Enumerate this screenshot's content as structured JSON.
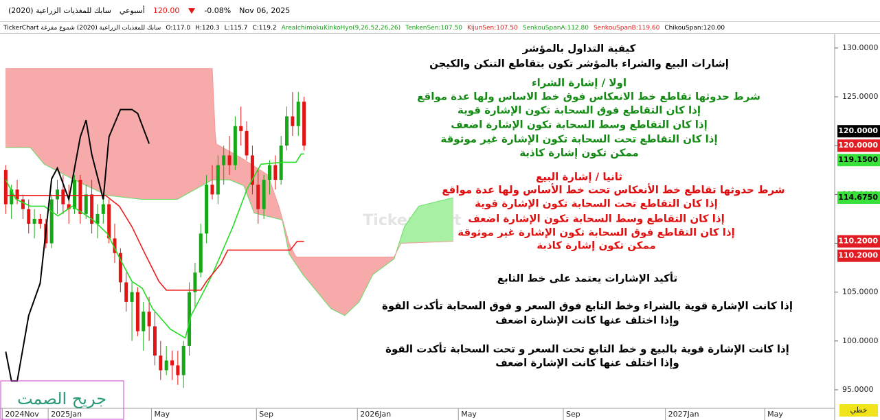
{
  "header": {
    "symbol": "سابك للمغذيات الزراعية (2020)",
    "interval": "أسبوعي",
    "price": "120.00",
    "change": "-0.08%",
    "date": "Nov 06, 2025"
  },
  "legend_bar": {
    "source": "TickerChart سابك للمغذيات الزراعية (2020) شموع مفرغة",
    "ohlc": [
      "O:117.0",
      "H:120.3",
      "L:115.7",
      "C:119.2"
    ],
    "indicators": [
      {
        "text": "AreaIchimokuKinkoHyo(9,26,52,26,26)",
        "color": "#1aa01a"
      },
      {
        "text": "TenkenSen:107.50",
        "color": "#1aa01a"
      },
      {
        "text": "KijunSen:107.50",
        "color": "#e01a1a"
      },
      {
        "text": "SenkouSpanA:112.80",
        "color": "#1aa01a"
      },
      {
        "text": "SenkouSpanB:119.60",
        "color": "#e01a1a"
      },
      {
        "text": "ChikouSpan:120.00",
        "color": "#000000"
      }
    ]
  },
  "chart_data": {
    "type": "candlestick",
    "xlim": [
      -1,
      144.5
    ],
    "ylim": [
      93.1,
      131.4
    ],
    "yticks": [
      {
        "value": 95,
        "label": "95.0000"
      },
      {
        "value": 100,
        "label": "100.0000"
      },
      {
        "value": 105,
        "label": "105.0000"
      },
      {
        "value": 110,
        "label": "110.0000"
      },
      {
        "value": 115,
        "label": "115.0000"
      },
      {
        "value": 120,
        "label": "120.0000"
      },
      {
        "value": 125,
        "label": "125.0000"
      },
      {
        "value": 130,
        "label": "130.0000"
      }
    ],
    "xticks": [
      {
        "value": -0.6,
        "label": "2024Nov"
      },
      {
        "value": 7.4,
        "label": "2025Jan"
      },
      {
        "value": 25.4,
        "label": "May"
      },
      {
        "value": 43.7,
        "label": "Sep"
      },
      {
        "value": 61.3,
        "label": "2026Jan"
      },
      {
        "value": 78.9,
        "label": "May"
      },
      {
        "value": 97.2,
        "label": "Sep"
      },
      {
        "value": 115,
        "label": "2027Jan"
      },
      {
        "value": 132.3,
        "label": "May"
      }
    ],
    "up_color": "#17a817",
    "down_color": "#e31414",
    "candles": {
      "open": [
        117.5,
        114,
        115.5,
        114.5,
        113.5,
        112,
        112.5,
        112,
        110,
        114.5,
        115.5,
        114,
        113.5,
        116.5,
        113,
        115,
        112,
        113,
        114,
        110.5,
        109,
        106,
        104,
        105,
        101,
        103,
        101.5,
        98.5,
        97,
        98,
        97.5,
        96.5,
        99.5,
        105,
        107,
        111,
        116,
        115,
        118,
        119,
        118,
        122,
        121.5,
        119,
        116,
        113.5,
        116.5,
        118,
        116.5,
        120,
        123,
        122,
        124.5
      ],
      "high": [
        118,
        116,
        116.5,
        115,
        114.5,
        113.5,
        113,
        112.5,
        115,
        116.5,
        117,
        116,
        117,
        117,
        116,
        116.5,
        114,
        115,
        114.5,
        112,
        109.5,
        107,
        106,
        105.5,
        104,
        104.5,
        103,
        100,
        99.5,
        99,
        99,
        100,
        106,
        108,
        112,
        117,
        118,
        119,
        120,
        121,
        123,
        124,
        122.5,
        120,
        117.5,
        117,
        118.5,
        119,
        121,
        124,
        125.5,
        125.5,
        125
      ],
      "low": [
        113,
        112.5,
        114,
        112.5,
        111,
        110.5,
        111.5,
        109.5,
        109.5,
        113,
        113,
        112,
        113,
        112,
        112.5,
        111,
        110.5,
        112,
        110,
        108,
        105,
        103,
        100,
        100.5,
        99,
        100,
        97.5,
        96,
        96.5,
        96,
        95.5,
        95.2,
        98.5,
        103.5,
        106.5,
        110,
        114.5,
        114,
        116,
        117,
        117.5,
        120,
        118.5,
        115,
        112,
        112.5,
        115,
        115.5,
        116,
        119.5,
        121,
        121,
        119.5
      ],
      "close": [
        114,
        115.5,
        114.5,
        113.5,
        112,
        112.5,
        112,
        110,
        114.5,
        115.5,
        114,
        113.5,
        116.5,
        113,
        115,
        112,
        113,
        114,
        110.5,
        109,
        106,
        104,
        105,
        101,
        103,
        101.5,
        98.5,
        97,
        98,
        97.5,
        96.5,
        99.5,
        105,
        107,
        111,
        116,
        115,
        118,
        119,
        118,
        122,
        121.5,
        119,
        116,
        113.5,
        116.5,
        118,
        116.5,
        120,
        123,
        122,
        124.5,
        120
      ]
    },
    "series": [
      {
        "color": "#22dd22",
        "width": 1.6,
        "x": [
          0,
          1.8,
          4.3,
          6.7,
          9.1,
          11.6,
          15.2,
          17.7,
          20.1,
          22,
          23.8,
          25.6,
          28.7,
          31.3,
          32.3,
          34.8,
          36,
          39.6,
          42.1,
          44.5,
          48.2,
          50.6,
          51.5,
          52
        ],
        "values": [
          116.5,
          114.5,
          113.8,
          113.8,
          112.8,
          113.8,
          112.4,
          111,
          108.2,
          106.1,
          105.4,
          103.3,
          101.2,
          100.3,
          102.6,
          105.4,
          106.8,
          111.7,
          115.6,
          118.1,
          118.3,
          118.3,
          119.15,
          119.15
        ]
      },
      {
        "color": "#ee1c1c",
        "width": 1.6,
        "x": [
          0,
          17.4,
          19.8,
          22,
          24.3,
          26.7,
          28,
          34,
          35,
          37.5,
          38.7,
          49.6,
          50.8,
          52
        ],
        "values": [
          114.9,
          114.9,
          113.8,
          111.7,
          108.9,
          106.1,
          105.2,
          105.2,
          106.1,
          107.9,
          109.3,
          109.3,
          110.2,
          110.2
        ]
      },
      {
        "color": "#000000",
        "width": 2,
        "x": [
          0,
          1,
          2,
          4,
          6,
          8,
          9,
          11,
          13,
          14,
          15,
          17,
          18,
          20,
          22,
          23,
          25
        ],
        "values": [
          98.9,
          95.9,
          95.9,
          102.6,
          105.9,
          116.6,
          117.7,
          114.5,
          120.9,
          122.6,
          119.1,
          114.5,
          120.9,
          123.7,
          123.7,
          123.3,
          120.2
        ]
      },
      {
        "color": "#66dd66",
        "width": 1,
        "x": [
          0,
          4.3,
          6.7,
          11.6,
          17.7,
          23.8,
          29.9,
          36,
          39,
          41.5,
          43.3,
          48.2,
          49.4,
          51.8,
          56.7,
          59.1,
          61.6,
          64,
          67.7,
          69.5,
          72,
          78
        ],
        "values": [
          119.8,
          119.8,
          118.1,
          116.6,
          114.9,
          114.5,
          114.5,
          116.5,
          116.5,
          115.9,
          113.1,
          112.4,
          108.9,
          106.8,
          103.3,
          102.6,
          104,
          106.8,
          108.4,
          111.7,
          113.8,
          114.675
        ]
      },
      {
        "color": "#f29a9a",
        "width": 1,
        "x": [
          0,
          36,
          36.6,
          40.9,
          45.7,
          47.6,
          49.4,
          50.6,
          67.7,
          68.9,
          78
        ],
        "values": [
          127.9,
          127.9,
          120.2,
          118.8,
          117,
          113.8,
          110,
          108.6,
          108.6,
          110,
          110.2
        ]
      }
    ],
    "cloud": {
      "series": [
        3,
        4
      ],
      "colors": [
        "#a8f0a4",
        "#f6aaaa"
      ]
    },
    "price_tags": [
      {
        "value": 120,
        "label": "120.0000",
        "color": "#e31b23",
        "text_color": "#ffffff"
      },
      {
        "value": 119.15,
        "label": "119.1500",
        "color": "#3ae03a",
        "text_color": "#000000"
      },
      {
        "value": 120,
        "label": "120.0000",
        "color": "#000000",
        "text_color": "#ffffff"
      },
      {
        "value": 114.675,
        "label": "114.6750",
        "color": "#3ae03a",
        "text_color": "#000000"
      },
      {
        "value": 110.2,
        "label": "110.2000",
        "color": "#e31b23",
        "text_color": "#ffffff"
      },
      {
        "value": 110.2,
        "label": "110.2000",
        "color": "#e31b23",
        "text_color": "#ffffff"
      }
    ]
  },
  "annotations": [
    {
      "text": "كيفية التداول بالمؤشر",
      "color": "#000000"
    },
    {
      "text": "إشارات البيع والشراء بالمؤشر تكون بتقاطع التنكن والكيجن",
      "color": "#000000"
    },
    {
      "text": "اولا / إشارة الشراء",
      "color": "#138a13"
    },
    {
      "text": "شرط حدوثها تقاطع خط الانعكاس فوق خط الاساس ولها عدة مواقع",
      "color": "#138a13"
    },
    {
      "text": "إذا كان التقاطع فوق السحابة تكون الإشارة قوية",
      "color": "#138a13"
    },
    {
      "text": "إذا كان التقاطع وسط السحابة تكون الإشارة اضعف",
      "color": "#138a13"
    },
    {
      "text": "إذا كان التقاطع تحت السحابة تكون الإشارة غير موثوقة",
      "color": "#138a13"
    },
    {
      "text": "ممكن تكون إشارة كاذبة",
      "color": "#138a13"
    },
    {
      "text": "ثانيا / إشارة البيع",
      "color": "#e01010"
    },
    {
      "text": "شرط حدوثها تقاطع خط الأنعكاس تحت خط الأساس ولها عدة مواقع",
      "color": "#e01010"
    },
    {
      "text": "إذا كان التقاطع تحت السحابة تكون الإشارة قوية",
      "color": "#e01010"
    },
    {
      "text": "إذا كان التقاطع وسط السحابة تكون الإشارة اضعف",
      "color": "#e01010"
    },
    {
      "text": "إذا كان التقاطع فوق السحابة تكون الإشارة غير موثوقة",
      "color": "#e01010"
    },
    {
      "text": "ممكن تكون إشارة كاذبة",
      "color": "#e01010"
    },
    {
      "text": "تأكيد الإشارات يعتمد على خط التابع",
      "color": "#000000"
    },
    {
      "text": "إذا كانت الإشارة قوية بالشراء وخط التابع فوق السعر و فوق السحابة تأكدت القوة",
      "color": "#000000"
    },
    {
      "text": "وإذا اختلف عنها كانت الإشارة اضعف",
      "color": "#000000"
    },
    {
      "text": "إذا كانت الإشارة قوية بالبيع  و خط التابع تحت السعر و تحت السحابة تأكدت القوة",
      "color": "#000000"
    },
    {
      "text": "وإذا اختلف عنها كانت الإشارة اضعف",
      "color": "#000000"
    }
  ],
  "watermark": "TickerChart",
  "signature": "جريح الصمت",
  "line_type": "خطي"
}
